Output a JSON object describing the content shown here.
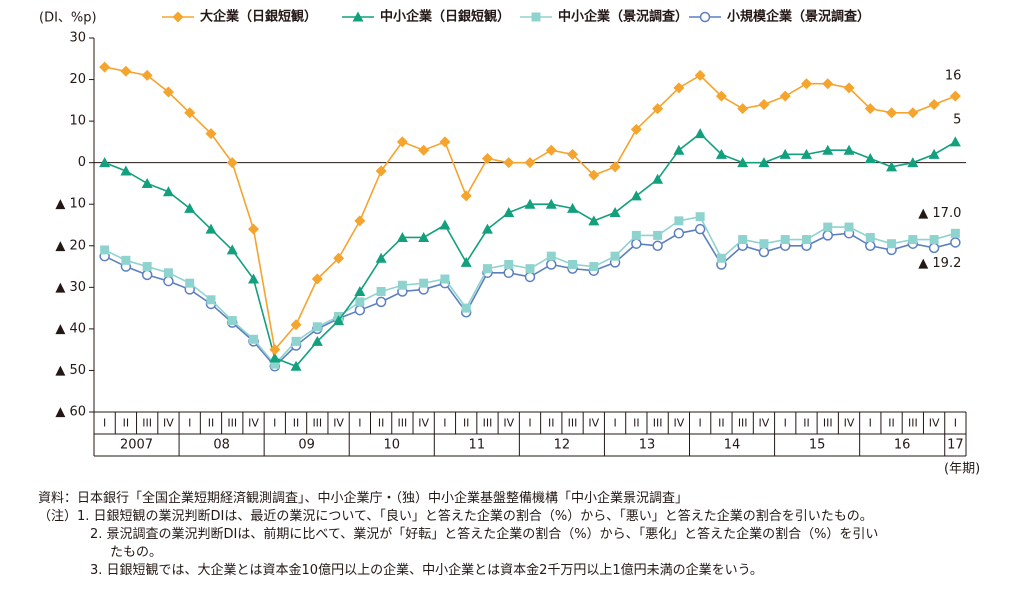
{
  "chart_data": {
    "type": "line",
    "ylabel": "(DI、%p)",
    "xunit": "(年期)",
    "ylim": [
      -60,
      30
    ],
    "y_ticks": [
      30,
      20,
      10,
      0,
      -10,
      -20,
      -30,
      -40,
      -50,
      -60
    ],
    "y_tick_labels": [
      "30",
      "20",
      "10",
      "0",
      "▲ 10",
      "▲ 20",
      "▲ 30",
      "▲ 40",
      "▲ 50",
      "▲ 60"
    ],
    "quarters": [
      "I",
      "II",
      "III",
      "IV",
      "I",
      "II",
      "III",
      "IV",
      "I",
      "II",
      "III",
      "IV",
      "I",
      "II",
      "III",
      "IV",
      "I",
      "II",
      "III",
      "IV",
      "I",
      "II",
      "III",
      "IV",
      "I",
      "II",
      "III",
      "IV",
      "I",
      "II",
      "III",
      "IV",
      "I",
      "II",
      "III",
      "IV",
      "I",
      "II",
      "III",
      "IV",
      "I"
    ],
    "years": [
      {
        "label": "2007",
        "start": 0,
        "count": 4
      },
      {
        "label": "08",
        "start": 4,
        "count": 4
      },
      {
        "label": "09",
        "start": 8,
        "count": 4
      },
      {
        "label": "10",
        "start": 12,
        "count": 4
      },
      {
        "label": "11",
        "start": 16,
        "count": 4
      },
      {
        "label": "12",
        "start": 20,
        "count": 4
      },
      {
        "label": "13",
        "start": 24,
        "count": 4
      },
      {
        "label": "14",
        "start": 28,
        "count": 4
      },
      {
        "label": "15",
        "start": 32,
        "count": 4
      },
      {
        "label": "16",
        "start": 36,
        "count": 4
      },
      {
        "label": "17",
        "start": 40,
        "count": 1
      }
    ],
    "grid": false,
    "legend_position": "top",
    "series": [
      {
        "name": "大企業（日銀短観）",
        "color": "#f5a42e",
        "marker": "diamond",
        "values": [
          23,
          22,
          21,
          17,
          12,
          7,
          0,
          -16,
          -45,
          -39,
          -28,
          -23,
          -14,
          -2,
          5,
          3,
          5,
          -8,
          1,
          0,
          0,
          3,
          2,
          -3,
          -1,
          8,
          13,
          18,
          21,
          16,
          13,
          14,
          16,
          19,
          19,
          18,
          13,
          12,
          12,
          14,
          16
        ],
        "end_label": "16"
      },
      {
        "name": "中小企業（日銀短観）",
        "color": "#13a07d",
        "marker": "triangle",
        "values": [
          0,
          -2,
          -5,
          -7,
          -11,
          -16,
          -21,
          -28,
          -47,
          -49,
          -43,
          -38,
          -31,
          -23,
          -18,
          -18,
          -15,
          -24,
          -16,
          -12,
          -10,
          -10,
          -11,
          -14,
          -12,
          -8,
          -4,
          3,
          7,
          2,
          0,
          0,
          2,
          2,
          3,
          3,
          1,
          -1,
          0,
          2,
          5
        ],
        "end_label": "5"
      },
      {
        "name": "中小企業（景況調査）",
        "color": "#8fd3cf",
        "marker": "square",
        "values": [
          -21,
          -23.5,
          -25,
          -26.5,
          -29,
          -33,
          -38,
          -42.5,
          -48.5,
          -43,
          -39.5,
          -37,
          -33.5,
          -31,
          -29.5,
          -29,
          -28,
          -35,
          -25.5,
          -24.5,
          -25.5,
          -22.5,
          -24.5,
          -25,
          -22.5,
          -17.5,
          -17.5,
          -14,
          -13,
          -23,
          -18.5,
          -19.5,
          -18.5,
          -18.5,
          -15.5,
          -15.5,
          -18,
          -19.5,
          -18.5,
          -18.5,
          -17
        ],
        "end_label": "▲ 17.0"
      },
      {
        "name": "小規模企業（景況調査）",
        "color": "#5b7fc1",
        "marker": "circle",
        "values": [
          -22.5,
          -25,
          -27,
          -28.5,
          -30.5,
          -34,
          -38.5,
          -43,
          -49,
          -44,
          -40,
          -37.5,
          -35.5,
          -33.5,
          -31,
          -30.5,
          -29,
          -36,
          -26.5,
          -26.5,
          -27.5,
          -24.5,
          -25.5,
          -26,
          -24,
          -19.5,
          -20,
          -17,
          -16,
          -24.5,
          -20,
          -21.5,
          -20,
          -20,
          -17.5,
          -17,
          -20,
          -21,
          -19.5,
          -20.5,
          -19.2
        ],
        "end_label": "▲ 19.2"
      }
    ]
  },
  "notes": {
    "source": "資料：日本銀行「全国企業短期経済観測調査」、中小企業庁・（独）中小企業基盤整備機構「中小企業景況調査」",
    "note1": "（注）1. 日銀短観の業況判断DIは、最近の業況について、「良い」と答えた企業の割合（%）から、「悪い」と答えた企業の割合を引いたもの。",
    "note2a": "2. 景況調査の業況判断DIは、前期に比べて、業況が「好転」と答えた企業の割合（%）から、「悪化」と答えた企業の割合（%）を引い",
    "note2b": "たもの。",
    "note3": "3. 日銀短観では、大企業とは資本金10億円以上の企業、中小企業とは資本金2千万円以上1億円未満の企業をいう。"
  }
}
